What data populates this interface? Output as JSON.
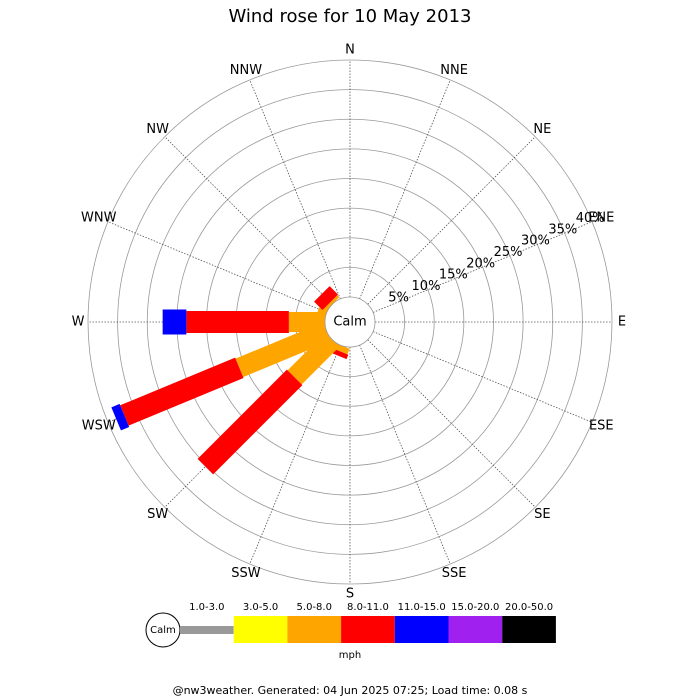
{
  "chart_data": {
    "type": "windrose",
    "title": "Wind rose for 10 May 2013",
    "categories": [
      "N",
      "NNE",
      "NE",
      "ENE",
      "E",
      "ESE",
      "SE",
      "SSE",
      "S",
      "SSW",
      "SW",
      "WSW",
      "W",
      "WNW",
      "NW",
      "NNW"
    ],
    "center_label": "Calm",
    "rlim": [
      0,
      40
    ],
    "rticks": [
      {
        "value": 5,
        "label": "5%"
      },
      {
        "value": 10,
        "label": "10%"
      },
      {
        "value": 15,
        "label": "15%"
      },
      {
        "value": 20,
        "label": "20%"
      },
      {
        "value": 25,
        "label": "25%"
      },
      {
        "value": 30,
        "label": "30%"
      },
      {
        "value": 35,
        "label": "35%"
      },
      {
        "value": 40,
        "label": "40%"
      }
    ],
    "series": [
      {
        "name": "1.0-3.0",
        "color": "#999999",
        "values": [
          0,
          0,
          0,
          0,
          0,
          0,
          0,
          0,
          0,
          0,
          0,
          0,
          0,
          0,
          0,
          0
        ]
      },
      {
        "name": "3.0-5.0",
        "color": "#ffff00",
        "values": [
          0,
          0,
          0,
          0,
          0,
          0,
          0,
          0,
          0,
          0,
          0,
          0,
          0,
          0,
          0,
          0
        ]
      },
      {
        "name": "5.0-8.0",
        "color": "#ffa500",
        "values": [
          0,
          0,
          0,
          0,
          0,
          0,
          0,
          0,
          0,
          1,
          9,
          16,
          6.1,
          1.5,
          0.5,
          0
        ]
      },
      {
        "name": "8.0-11.0",
        "color": "#ff0000",
        "values": [
          0,
          0,
          0,
          0,
          0,
          0,
          0,
          0,
          0,
          0.8,
          21.3,
          21,
          17.3,
          0,
          2,
          0
        ]
      },
      {
        "name": "11.0-15.0",
        "color": "#0000ff",
        "values": [
          0,
          0,
          0,
          0,
          0,
          0,
          0,
          0,
          0,
          0,
          0,
          1.5,
          4,
          0,
          0,
          0
        ]
      },
      {
        "name": "15.0-20.0",
        "color": "#a020f0",
        "values": [
          0,
          0,
          0,
          0,
          0,
          0,
          0,
          0,
          0,
          0,
          0,
          0,
          0,
          0,
          0,
          0
        ]
      },
      {
        "name": "20.0-50.0",
        "color": "#000000",
        "values": [
          0,
          0,
          0,
          0,
          0,
          0,
          0,
          0,
          0,
          0,
          0,
          0,
          0,
          0,
          0,
          0
        ]
      }
    ],
    "legend_calm_label": "Calm",
    "legend_unit": "mph",
    "footer": "@nw3weather. Generated: 04 Jun 2025 07:25; Load time: 0.08 s"
  }
}
